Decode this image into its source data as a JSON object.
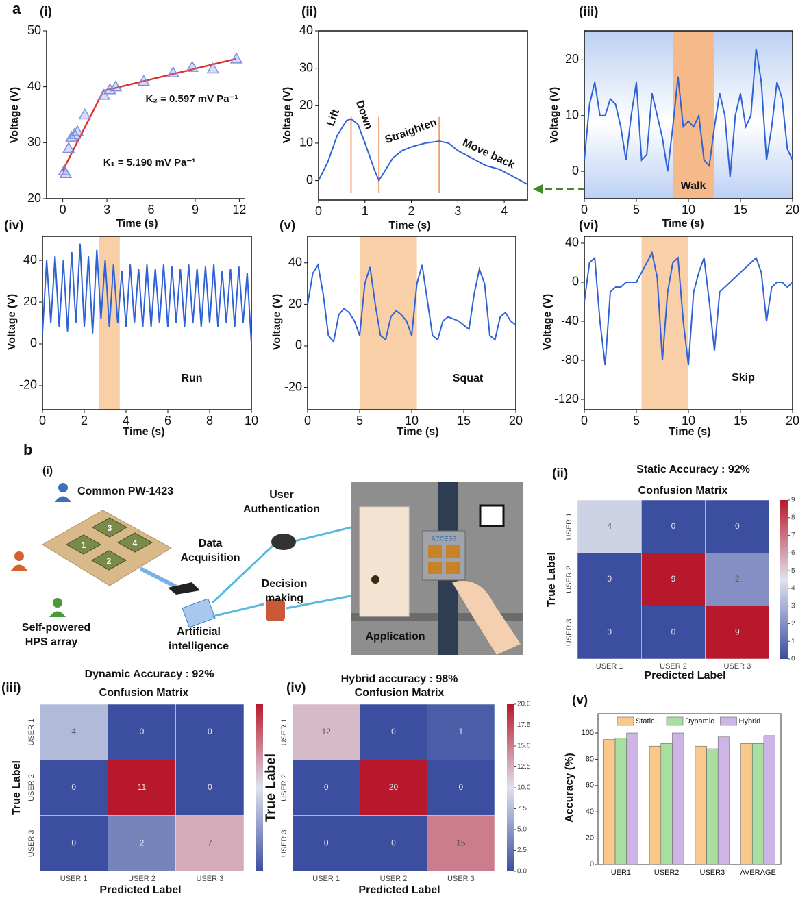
{
  "panel_letters": [
    "a",
    "b"
  ],
  "diagram": {
    "label": "(i)",
    "common": "Common PW-1423",
    "array": [
      "Self-powered",
      "HPS array"
    ],
    "acquisition": [
      "Data",
      "Acquisition"
    ],
    "authentication": [
      "User",
      "Authentication"
    ],
    "decision": [
      "Decision",
      "making"
    ],
    "ai": [
      "Artificial",
      "intelligence"
    ],
    "application": "Application",
    "access": "ACCESS",
    "pads": [
      "1",
      "2",
      "3",
      "4"
    ]
  },
  "chart_data": [
    {
      "type": "scatter",
      "label": "(i)",
      "xlabel": "Time (s)",
      "ylabel": "Voltage (V)",
      "x": [
        0.1,
        0.2,
        0.4,
        0.6,
        0.8,
        1.0,
        1.5,
        2.8,
        3.2,
        3.6,
        5.5,
        7.5,
        8.8,
        10.2,
        11.8
      ],
      "values": [
        25,
        24.5,
        29,
        31,
        31.5,
        32,
        35,
        38.5,
        39.5,
        40,
        41,
        42.5,
        43.5,
        43.2,
        45
      ],
      "color": "#7d8fe0",
      "fit_lines": [
        {
          "x": [
            0,
            2.8
          ],
          "values": [
            25,
            39.5
          ]
        },
        {
          "x": [
            2.8,
            11.8
          ],
          "values": [
            39.3,
            45
          ]
        }
      ],
      "fit_color": "#e03030",
      "annotations": [
        "K₁ = 5.190  mV Pa⁻¹",
        "K₂ = 0.597  mV Pa⁻¹"
      ],
      "xlim": [
        -1.1,
        12.4
      ],
      "ylim": [
        20,
        50
      ],
      "xticks": [
        0,
        3,
        6,
        9,
        12
      ],
      "yticks": [
        20,
        30,
        40,
        50
      ]
    },
    {
      "type": "line",
      "label": "(ii)",
      "xlabel": "Time (s)",
      "ylabel": "Voltage (V)",
      "x": [
        0,
        0.2,
        0.4,
        0.6,
        0.7,
        0.85,
        1,
        1.2,
        1.3,
        1.4,
        1.6,
        1.8,
        2,
        2.3,
        2.6,
        2.8,
        3,
        3.3,
        3.6,
        3.9,
        4.2,
        4.5
      ],
      "values": [
        0,
        5,
        12,
        16,
        16.5,
        15,
        10,
        3,
        0,
        2,
        6,
        8,
        9,
        10,
        10.5,
        10,
        8,
        6,
        4,
        3,
        1,
        -1
      ],
      "color": "#2f62d6",
      "vlines": [
        0.7,
        1.3,
        2.6
      ],
      "vline_color": "#f0a070",
      "annotations": [
        "Lift",
        "Down",
        "Straighten",
        "Move back"
      ],
      "xlim": [
        0,
        4.5
      ],
      "ylim": [
        -5.2,
        40
      ],
      "xticks": [
        0,
        1,
        2,
        3,
        4
      ],
      "yticks": [
        0,
        10,
        20,
        30,
        40
      ]
    },
    {
      "type": "line",
      "label": "(iii)",
      "xlabel": "Time (s)",
      "ylabel": "Voltage (V)",
      "x": [
        0,
        0.5,
        1,
        1.5,
        2,
        2.5,
        3,
        3.5,
        4,
        4.5,
        5,
        5.5,
        6,
        6.5,
        7,
        7.5,
        8,
        8.5,
        9,
        9.5,
        10,
        10.5,
        11,
        11.5,
        12,
        12.5,
        13,
        13.5,
        14,
        14.5,
        15,
        15.5,
        16,
        16.5,
        17,
        17.5,
        18,
        18.5,
        19,
        19.5,
        20
      ],
      "values": [
        2,
        12,
        16,
        10,
        10,
        13,
        12,
        8,
        2,
        10,
        16,
        2,
        3,
        14,
        10,
        6,
        0,
        8,
        17,
        8,
        9,
        8,
        10,
        2,
        1,
        8,
        14,
        10,
        -1,
        10,
        14,
        8,
        10,
        22,
        16,
        2,
        8,
        16,
        13,
        4,
        2
      ],
      "color": "#2f62d6",
      "background_color": "#bcd0f4",
      "band": [
        8.5,
        12.5
      ],
      "band_color": "#f6b98a",
      "band_label": "Walk",
      "xlim": [
        0,
        20
      ],
      "ylim": [
        -4.9,
        25.2
      ],
      "xticks": [
        0,
        5,
        10,
        15,
        20
      ],
      "yticks": [
        0,
        10,
        20
      ]
    },
    {
      "type": "line",
      "label": "(iv)",
      "xlabel": "Time (s)",
      "ylabel": "Voltage (V)",
      "x": [
        0,
        0.2,
        0.4,
        0.6,
        0.8,
        1,
        1.2,
        1.4,
        1.6,
        1.8,
        2,
        2.2,
        2.4,
        2.6,
        2.8,
        3,
        3.2,
        3.4,
        3.6,
        3.8,
        4,
        4.2,
        4.4,
        4.6,
        4.8,
        5,
        5.2,
        5.4,
        5.6,
        5.8,
        6,
        6.2,
        6.4,
        6.6,
        6.8,
        7,
        7.2,
        7.4,
        7.6,
        7.8,
        8,
        8.2,
        8.4,
        8.6,
        8.8,
        9,
        9.2,
        9.4,
        9.6,
        9.8,
        10
      ],
      "values": [
        5,
        40,
        10,
        42,
        8,
        40,
        6,
        44,
        10,
        48,
        8,
        42,
        5,
        45,
        12,
        40,
        8,
        38,
        10,
        35,
        8,
        38,
        10,
        36,
        8,
        38,
        8,
        36,
        10,
        38,
        8,
        37,
        10,
        36,
        8,
        38,
        10,
        36,
        8,
        37,
        10,
        38,
        8,
        35,
        10,
        36,
        8,
        37,
        10,
        34,
        0
      ],
      "color": "#2f62d6",
      "band": [
        2.7,
        3.7
      ],
      "band_color": "#f9cfa8",
      "band_label": "Run",
      "xlim": [
        0,
        10
      ],
      "ylim": [
        -31.5,
        51.5
      ],
      "xticks": [
        0,
        2,
        4,
        6,
        8,
        10
      ],
      "yticks": [
        -20,
        0,
        20,
        40
      ]
    },
    {
      "type": "line",
      "label": "(v)",
      "xlabel": "Time (s)",
      "ylabel": "Voltage (V)",
      "x": [
        0,
        0.5,
        1,
        1.5,
        2,
        2.5,
        3,
        3.5,
        4,
        4.5,
        5,
        5.5,
        6,
        6.5,
        7,
        7.5,
        8,
        8.5,
        9,
        9.5,
        10,
        10.5,
        11,
        11.5,
        12,
        12.5,
        13,
        13.5,
        14,
        14.5,
        15,
        15.5,
        16,
        16.5,
        17,
        17.5,
        18,
        18.5,
        19,
        19.5,
        20
      ],
      "values": [
        20,
        35,
        39,
        25,
        5,
        2,
        15,
        18,
        16,
        12,
        5,
        30,
        38,
        20,
        5,
        3,
        14,
        17,
        15,
        12,
        5,
        30,
        39,
        22,
        5,
        3,
        12,
        14,
        13,
        12,
        10,
        8,
        25,
        37,
        30,
        5,
        3,
        14,
        16,
        12,
        10
      ],
      "color": "#2f62d6",
      "band": [
        5,
        10.5
      ],
      "band_color": "#f9cfa8",
      "band_label": "Squat",
      "xlim": [
        0,
        20
      ],
      "ylim": [
        -30.7,
        52.8
      ],
      "xticks": [
        0,
        5,
        10,
        15,
        20
      ],
      "yticks": [
        -20,
        0,
        20,
        40
      ]
    },
    {
      "type": "line",
      "label": "(vi)",
      "xlabel": "Time (s)",
      "ylabel": "Voltage (V)",
      "x": [
        0,
        0.5,
        1,
        1.5,
        2,
        2.5,
        3,
        3.5,
        4,
        4.5,
        5,
        5.5,
        6,
        6.5,
        7,
        7.5,
        8,
        8.5,
        9,
        9.5,
        10,
        10.5,
        11,
        11.5,
        12,
        12.5,
        13,
        13.5,
        14,
        14.5,
        15,
        15.5,
        16,
        16.5,
        17,
        17.5,
        18,
        18.5,
        19,
        19.5,
        20
      ],
      "values": [
        -20,
        20,
        25,
        -40,
        -85,
        -10,
        -5,
        -5,
        0,
        0,
        0,
        10,
        20,
        30,
        5,
        -80,
        -10,
        20,
        25,
        -40,
        -85,
        -10,
        10,
        25,
        -20,
        -70,
        -10,
        -5,
        0,
        5,
        10,
        15,
        20,
        25,
        10,
        -40,
        -5,
        0,
        0,
        -5,
        0
      ],
      "color": "#2f62d6",
      "band": [
        5.5,
        10
      ],
      "band_color": "#f9cfa8",
      "band_label": "Skip",
      "xlim": [
        0,
        20
      ],
      "ylim": [
        -130.5,
        47
      ],
      "xticks": [
        0,
        5,
        10,
        15,
        20
      ],
      "yticks": [
        -120,
        -80,
        -40,
        0,
        40
      ]
    },
    {
      "type": "heatmap",
      "label": "(ii)",
      "title": "Static Accuracy : 92%",
      "subtitle": "Confusion Matrix",
      "xlabel": "Predicted Label",
      "ylabel": "True Label",
      "x_categories": [
        "USER 1",
        "USER 2",
        "USER 3"
      ],
      "y_categories": [
        "USER 1",
        "USER 2",
        "USER 3"
      ],
      "values": [
        [
          4,
          0,
          0
        ],
        [
          0,
          9,
          2
        ],
        [
          0,
          0,
          9
        ]
      ],
      "colormap": [
        "#3b4ea0",
        "#dfe2ee",
        "#b8182c"
      ],
      "colorbar": {
        "range": [
          0,
          9
        ],
        "ticks": [
          0,
          1,
          2,
          3,
          4,
          5,
          6,
          7,
          8,
          9
        ]
      }
    },
    {
      "type": "heatmap",
      "label": "(iii)",
      "title": "Dynamic Accuracy : 92%",
      "subtitle": "Confusion Matrix",
      "xlabel": "Predicted Label",
      "ylabel": "True Label",
      "x_categories": [
        "USER 1",
        "USER 2",
        "USER 3"
      ],
      "y_categories": [
        "USER 1",
        "USER 2",
        "USER 3"
      ],
      "values": [
        [
          4,
          0,
          0
        ],
        [
          0,
          11,
          0
        ],
        [
          0,
          2,
          7
        ]
      ],
      "colormap": [
        "#3b4ea0",
        "#dfe2ee",
        "#b8182c"
      ],
      "colorbar": {
        "range": [
          0,
          11
        ]
      }
    },
    {
      "type": "heatmap",
      "label": "(iv)",
      "title": "Hybrid accuracy : 98%",
      "subtitle": "Confusion Matrix",
      "xlabel": "Predicted Label",
      "ylabel": "True Label",
      "x_categories": [
        "USER 1",
        "USER 2",
        "USER 3"
      ],
      "y_categories": [
        "USER 1",
        "USER 2",
        "USER 3"
      ],
      "values": [
        [
          12,
          0,
          1
        ],
        [
          0,
          20,
          0
        ],
        [
          0,
          0,
          15
        ]
      ],
      "colormap": [
        "#3b4ea0",
        "#dfe2ee",
        "#b8182c"
      ],
      "colorbar": {
        "range": [
          0,
          20
        ],
        "ticks": [
          {
            "value": 0,
            "label": "0.0"
          },
          2.5,
          {
            "value": 5,
            "label": "5.0"
          },
          7.5,
          {
            "value": 10,
            "label": "10.0"
          },
          12.5,
          {
            "value": 15,
            "label": "15.0"
          },
          17.5,
          {
            "value": 20,
            "label": "20.0"
          }
        ]
      }
    },
    {
      "type": "bar",
      "label": "(v)",
      "ylabel": "Accuracy (%)",
      "categories": [
        "UER1",
        "USER2",
        "USER3",
        "AVERAGE"
      ],
      "series": [
        {
          "name": "Static",
          "color": "#f9c98b",
          "values": [
            95,
            90,
            90,
            92
          ]
        },
        {
          "name": "Dynamic",
          "color": "#a8dea0",
          "values": [
            96,
            92,
            88,
            92
          ]
        },
        {
          "name": "Hybrid",
          "color": "#cdb5e6",
          "values": [
            100,
            100,
            97,
            98
          ]
        }
      ],
      "legend": "top",
      "ylim": [
        0,
        114.6
      ],
      "yticks": [
        0,
        20,
        40,
        60,
        80,
        100
      ]
    }
  ]
}
